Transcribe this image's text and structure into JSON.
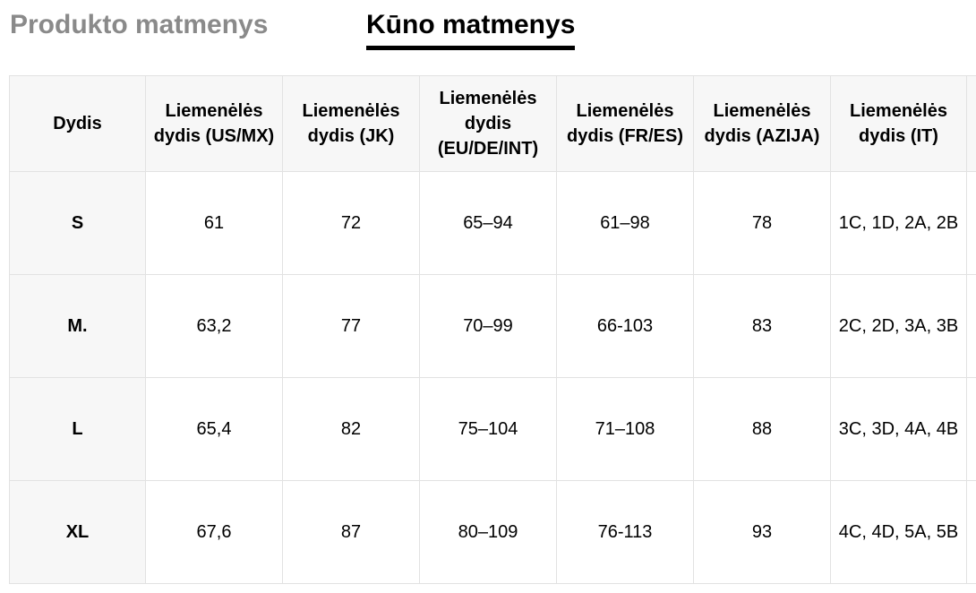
{
  "tabs": [
    {
      "label": "Produkto matmenys",
      "active": false
    },
    {
      "label": "Kūno matmenys",
      "active": true
    }
  ],
  "table": {
    "headers": [
      "Dydis",
      "Liemenėlės dydis (US/MX)",
      "Liemenėlės dydis (JK)",
      "Liemenėlės dydis (EU/DE/INT)",
      "Liemenėlės dydis (FR/ES)",
      "Liemenėlės dydis (AZIJA)",
      "Liemenėlės dydis (IT)",
      ""
    ],
    "rows": [
      [
        "S",
        "61",
        "72",
        "65–94",
        "61–98",
        "78",
        "1C, 1D, 2A, 2B",
        ""
      ],
      [
        "M.",
        "63,2",
        "77",
        "70–99",
        "66-103",
        "83",
        "2C, 2D, 3A, 3B",
        ""
      ],
      [
        "L",
        "65,4",
        "82",
        "75–104",
        "71–108",
        "88",
        "3C, 3D, 4A, 4B",
        ""
      ],
      [
        "XL",
        "67,6",
        "87",
        "80–109",
        "76-113",
        "93",
        "4C, 4D, 5A, 5B",
        ""
      ]
    ]
  },
  "colors": {
    "inactive_tab": "#8a8a8a",
    "active_tab": "#000000",
    "header_bg": "#f7f7f7",
    "border": "#e2e2e2"
  }
}
